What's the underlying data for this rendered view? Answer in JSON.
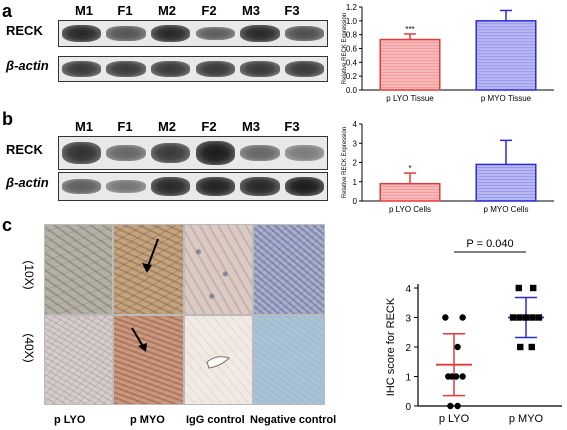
{
  "panels": {
    "a": {
      "letter": "a",
      "lanes": [
        "M1",
        "F1",
        "M2",
        "F2",
        "M3",
        "F3"
      ],
      "rows": [
        {
          "label": "RECK",
          "intensities": [
            0.85,
            0.55,
            0.85,
            0.5,
            0.85,
            0.6
          ]
        },
        {
          "label": "β-actin",
          "intensities": [
            0.75,
            0.75,
            0.75,
            0.75,
            0.75,
            0.75
          ]
        }
      ]
    },
    "b": {
      "letter": "b",
      "lanes": [
        "M1",
        "F1",
        "M2",
        "F2",
        "M3",
        "F3"
      ],
      "rows": [
        {
          "label": "RECK",
          "intensities": [
            0.8,
            0.45,
            0.75,
            0.95,
            0.45,
            0.3
          ]
        },
        {
          "label": "β-actin",
          "intensities": [
            0.5,
            0.35,
            0.85,
            0.9,
            0.85,
            0.95
          ]
        }
      ]
    },
    "c": {
      "letter": "c",
      "magnifications": [
        "(10X)",
        "(40X)"
      ],
      "conditions": [
        "p  LYO",
        "p MYO",
        "IgG control",
        "Negative control"
      ]
    }
  },
  "chart_data": [
    {
      "type": "bar",
      "categories": [
        "p LYO Tissue",
        "p MYO Tissue"
      ],
      "values": [
        0.73,
        1.0
      ],
      "errors": [
        0.08,
        0.15
      ],
      "annotations": [
        "***",
        ""
      ],
      "ylabel": "Relative RECK Expression",
      "ylim": [
        0,
        1.2
      ],
      "yticks": [
        "0.0",
        "0.2",
        "0.4",
        "0.6",
        "0.8",
        "1.0",
        "1.2"
      ],
      "colors": {
        "fill1": "#f6b8b8",
        "stroke1": "#e53a3a",
        "fill2": "#b8b8f2",
        "stroke2": "#2a2ad8"
      }
    },
    {
      "type": "bar",
      "categories": [
        "p LYO Cells",
        "p MYO Cells"
      ],
      "values": [
        0.9,
        1.9
      ],
      "errors": [
        0.55,
        1.25
      ],
      "annotations": [
        "*",
        ""
      ],
      "ylabel": "Relative RECK Expression",
      "ylim": [
        0,
        4
      ],
      "yticks": [
        "0",
        "1",
        "2",
        "3",
        "4"
      ],
      "colors": {
        "fill1": "#f6b8b8",
        "stroke1": "#e53a3a",
        "fill2": "#b8b8f2",
        "stroke2": "#2a2ad8"
      }
    },
    {
      "type": "scatter",
      "categories": [
        "p LYO",
        "p MYO"
      ],
      "ylabel": "IHC score for RECK",
      "ylim": [
        0,
        4
      ],
      "yticks": [
        "0",
        "1",
        "2",
        "3",
        "4"
      ],
      "pvalue": "P = 0.040",
      "groups": [
        {
          "name": "p LYO",
          "points": [
            [
              -0.12,
              3
            ],
            [
              0.12,
              3
            ],
            [
              0.05,
              2
            ],
            [
              -0.08,
              1
            ],
            [
              -0.03,
              1
            ],
            [
              0.03,
              1
            ],
            [
              0.12,
              1
            ],
            [
              -0.05,
              0
            ],
            [
              0.05,
              0
            ]
          ],
          "mean": 1.4,
          "sd": 1.05,
          "color": "#e53a3a",
          "marker": "circle"
        },
        {
          "name": "p MYO",
          "points": [
            [
              -0.1,
              4
            ],
            [
              0.1,
              4
            ],
            [
              -0.18,
              3
            ],
            [
              -0.09,
              3
            ],
            [
              0,
              3
            ],
            [
              0.09,
              3
            ],
            [
              0.18,
              3
            ],
            [
              -0.08,
              2
            ],
            [
              0.08,
              2
            ]
          ],
          "mean": 3.0,
          "sd": 0.68,
          "color": "#2a2ad8",
          "marker": "square"
        }
      ]
    }
  ]
}
